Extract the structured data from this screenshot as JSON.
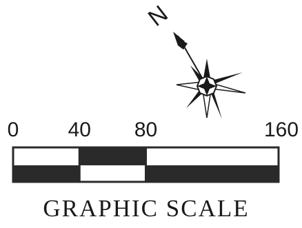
{
  "north_arrow": {
    "label": "N",
    "icon": "north-arrow-compass-rose-icon"
  },
  "scale": {
    "ticks": [
      {
        "value": 0,
        "label": "0"
      },
      {
        "value": 40,
        "label": "40"
      },
      {
        "value": 80,
        "label": "80"
      },
      {
        "value": 160,
        "label": "160"
      }
    ],
    "min": 0,
    "max": 160,
    "segments": [
      {
        "from": 0,
        "to": 40,
        "top": "white",
        "bottom": "black"
      },
      {
        "from": 40,
        "to": 80,
        "top": "black",
        "bottom": "white"
      },
      {
        "from": 80,
        "to": 160,
        "top": "white",
        "bottom": "black"
      }
    ],
    "bar_color": "#2a2a2a"
  },
  "caption": "GRAPHIC SCALE"
}
